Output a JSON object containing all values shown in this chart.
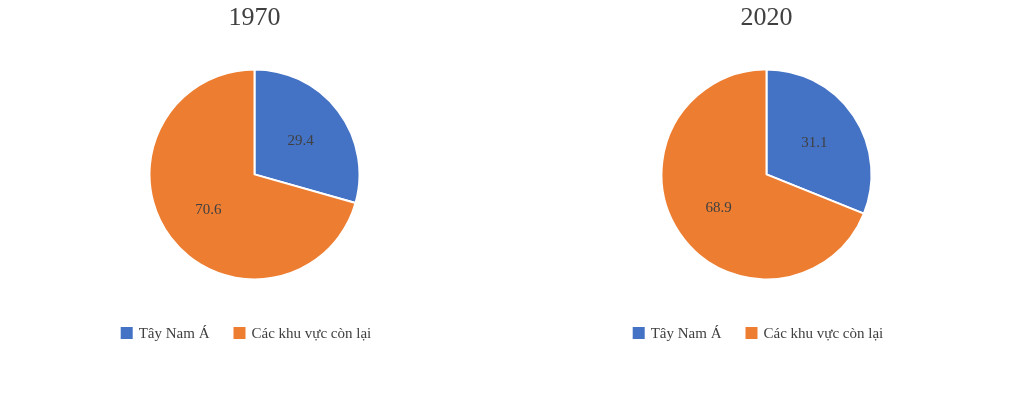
{
  "chart_data": [
    {
      "type": "pie",
      "title": "1970",
      "categories": [
        "Tây Nam Á",
        "Các khu vực còn lại"
      ],
      "values": [
        29.4,
        70.6
      ],
      "colors": [
        "#4472c4",
        "#ed7d31"
      ],
      "data_labels": true,
      "legend": "bottom"
    },
    {
      "type": "pie",
      "title": "2020",
      "categories": [
        "Tây Nam Á",
        "Các khu vực còn lại"
      ],
      "values": [
        31.1,
        68.9
      ],
      "colors": [
        "#4472c4",
        "#ed7d31"
      ],
      "data_labels": true,
      "legend": "bottom"
    }
  ]
}
